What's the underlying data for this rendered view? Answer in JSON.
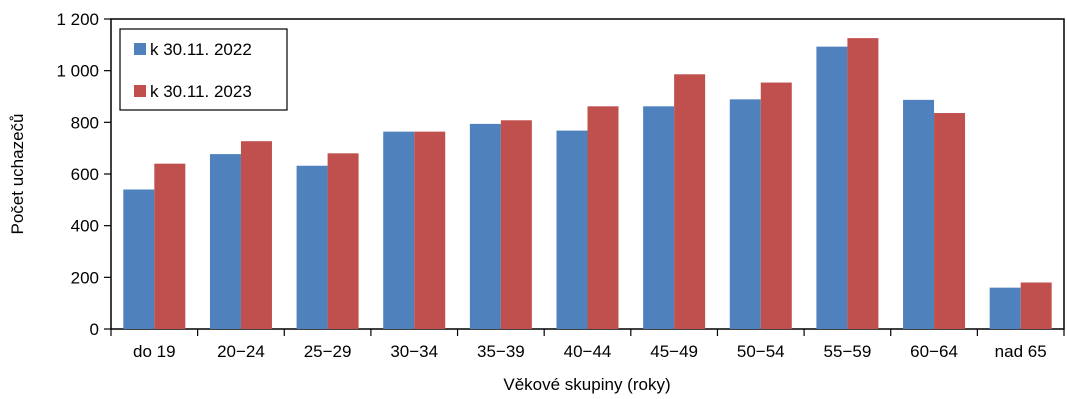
{
  "chart_data": {
    "type": "bar",
    "categories": [
      "do 19",
      "20−24",
      "25−29",
      "30−34",
      "35−39",
      "40−44",
      "45−49",
      "50−54",
      "55−59",
      "60−64",
      "nad 65"
    ],
    "series": [
      {
        "name": "k 30.11. 2022",
        "color": "#4F81BD",
        "values": [
          540,
          677,
          632,
          764,
          794,
          768,
          862,
          889,
          1093,
          887,
          160
        ]
      },
      {
        "name": "k 30.11. 2023",
        "color": "#C0504D",
        "values": [
          640,
          727,
          680,
          764,
          808,
          862,
          986,
          954,
          1126,
          836,
          180
        ]
      }
    ],
    "xlabel": "Věkové skupiny (roky)",
    "ylabel": "Počet uchazečů",
    "ylim": [
      0,
      1200
    ],
    "yticks": [
      0,
      200,
      400,
      600,
      800,
      1000,
      1200
    ],
    "ytick_labels": [
      "0",
      "200",
      "400",
      "600",
      "800",
      "1 000",
      "1 200"
    ],
    "grid": false,
    "legend_position": "top-left"
  }
}
